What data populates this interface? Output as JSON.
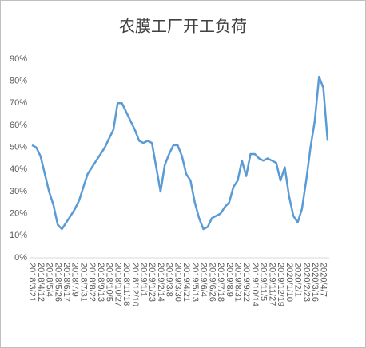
{
  "chart_data": {
    "type": "line",
    "title": "农膜工厂开工负荷",
    "categories": [
      "2018/3/21",
      null,
      "2018/4/12",
      null,
      "2018/5/4",
      null,
      "2018/5/26",
      null,
      "2018/6/17",
      null,
      "2018/7/9",
      null,
      "2018/7/31",
      null,
      "2018/8/22",
      null,
      "2018/9/13",
      null,
      "2018/10/5",
      null,
      "2018/10/27",
      null,
      "2018/11/18",
      null,
      "2018/12/10",
      null,
      "2019/1/1",
      null,
      "2019/1/23",
      null,
      "2019/2/14",
      null,
      "2019/3/8",
      null,
      "2019/3/30",
      null,
      "2019/4/21",
      null,
      "2019/5/13",
      null,
      "2019/6/4",
      null,
      "2019/6/26",
      null,
      "2019/7/18",
      null,
      "2019/8/9",
      null,
      "2019/8/31",
      null,
      "2019/9/22",
      null,
      "2019/10/14",
      null,
      "2019/11/5",
      null,
      "2019/11/27",
      null,
      "2019/12/19",
      null,
      "2020/1/10",
      null,
      "2020/2/1",
      null,
      "2020/2/23",
      null,
      "2020/3/16",
      null,
      "2020/4/7",
      null
    ],
    "values": [
      51,
      50,
      46,
      38,
      30,
      24,
      15,
      13,
      16,
      19,
      22,
      26,
      32,
      38,
      41,
      44,
      47,
      50,
      54,
      58,
      70,
      70,
      66,
      62,
      58,
      53,
      52,
      53,
      52,
      41,
      30,
      42,
      47,
      51,
      51,
      46,
      38,
      35,
      25,
      18,
      13,
      14,
      18,
      19,
      20,
      23,
      25,
      32,
      35,
      44,
      37,
      47,
      47,
      45,
      44,
      45,
      44,
      43,
      35,
      41,
      28,
      19,
      16,
      22,
      35,
      50,
      62,
      82,
      77,
      53
    ],
    "color": "#5b9bd5",
    "ylim": [
      0,
      90
    ],
    "yticks": [
      {
        "value": 0,
        "label": "0%"
      },
      {
        "value": 10,
        "label": "10%"
      },
      {
        "value": 20,
        "label": "20%"
      },
      {
        "value": 30,
        "label": "30%"
      },
      {
        "value": 40,
        "label": "40%"
      },
      {
        "value": 50,
        "label": "50%"
      },
      {
        "value": 60,
        "label": "60%"
      },
      {
        "value": 70,
        "label": "70%"
      },
      {
        "value": 80,
        "label": "80%"
      },
      {
        "value": 90,
        "label": "90%"
      }
    ]
  }
}
